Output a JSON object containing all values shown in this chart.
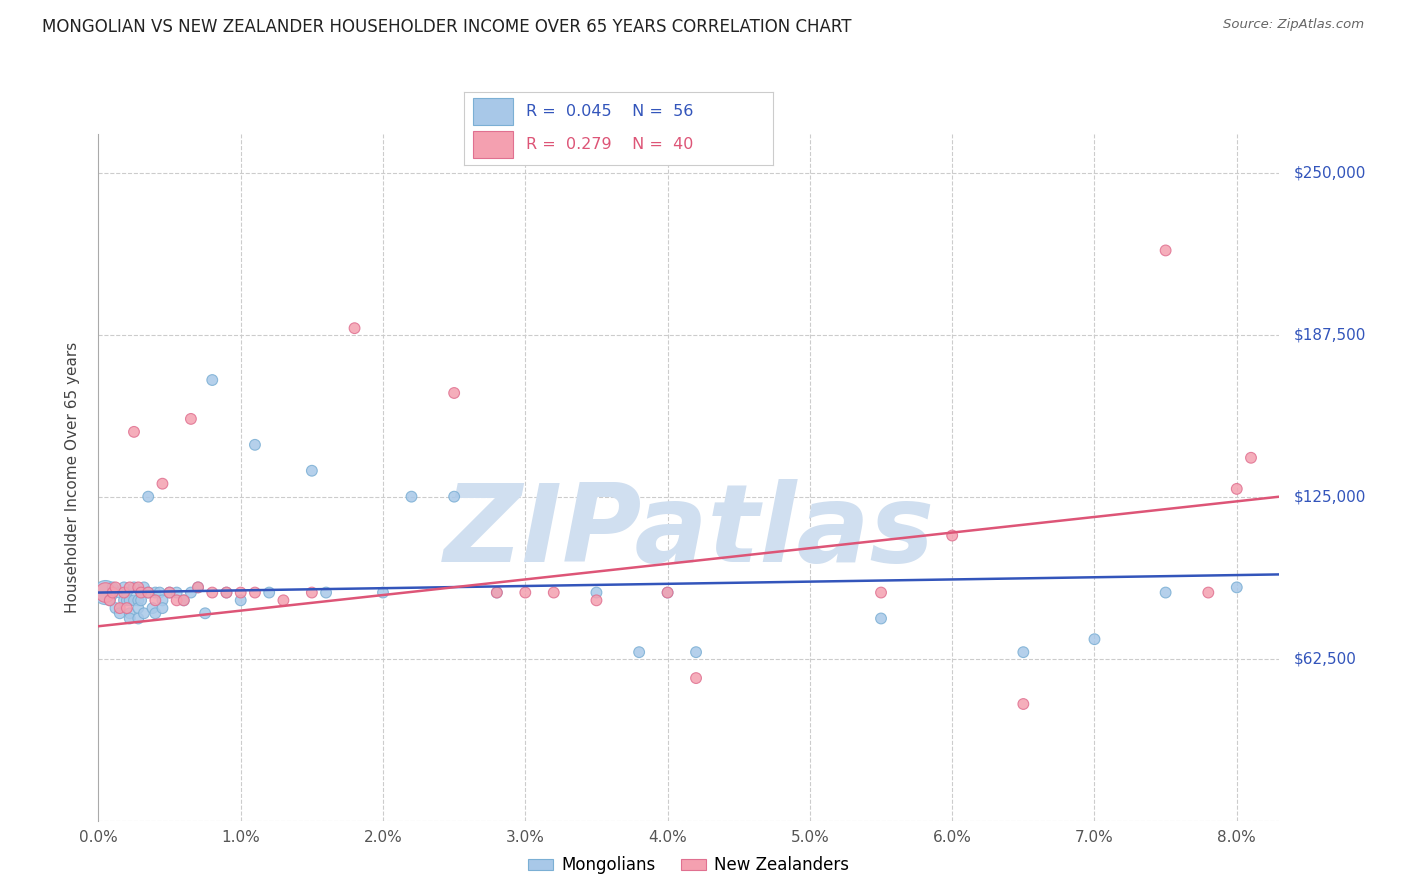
{
  "title": "MONGOLIAN VS NEW ZEALANDER HOUSEHOLDER INCOME OVER 65 YEARS CORRELATION CHART",
  "source": "Source: ZipAtlas.com",
  "xlabel_ticks": [
    "0.0%",
    "1.0%",
    "2.0%",
    "3.0%",
    "4.0%",
    "5.0%",
    "6.0%",
    "7.0%",
    "8.0%"
  ],
  "xlabel_vals": [
    0.0,
    1.0,
    2.0,
    3.0,
    4.0,
    5.0,
    6.0,
    7.0,
    8.0
  ],
  "ylabel_ticks": [
    0,
    62500,
    125000,
    187500,
    250000
  ],
  "ylabel_labels": [
    "",
    "$62,500",
    "$125,000",
    "$187,500",
    "$250,000"
  ],
  "xlim": [
    0.0,
    8.3
  ],
  "ylim": [
    0,
    265000
  ],
  "ylabel": "Householder Income Over 65 years",
  "legend_blue_r": "R = 0.045",
  "legend_blue_n": "N = 56",
  "legend_pink_r": "R = 0.279",
  "legend_pink_n": "N = 40",
  "legend1": "Mongolians",
  "legend2": "New Zealanders",
  "blue_color": "#a8c8e8",
  "pink_color": "#f4a0b0",
  "blue_edge": "#7bafd4",
  "pink_edge": "#e07090",
  "line_blue": "#3355bb",
  "line_pink": "#dd5577",
  "watermark": "ZIPatlas",
  "watermark_color": "#d0dff0",
  "background_color": "#ffffff",
  "grid_color": "#cccccc",
  "title_color": "#222222",
  "axis_label_color": "#444444",
  "right_label_color": "#3355bb",
  "tick_label_color": "#555555",
  "mongolian_x": [
    0.05,
    0.08,
    0.1,
    0.12,
    0.15,
    0.15,
    0.18,
    0.18,
    0.2,
    0.2,
    0.22,
    0.22,
    0.22,
    0.25,
    0.25,
    0.28,
    0.28,
    0.28,
    0.3,
    0.3,
    0.32,
    0.32,
    0.35,
    0.35,
    0.38,
    0.4,
    0.4,
    0.43,
    0.45,
    0.45,
    0.5,
    0.55,
    0.6,
    0.65,
    0.7,
    0.75,
    0.8,
    0.9,
    1.0,
    1.1,
    1.2,
    1.5,
    1.6,
    2.0,
    2.2,
    2.5,
    2.8,
    3.5,
    3.8,
    4.0,
    4.2,
    5.5,
    6.5,
    7.0,
    7.5,
    8.0
  ],
  "mongolian_y": [
    88000,
    85000,
    90000,
    82000,
    88000,
    80000,
    85000,
    90000,
    85000,
    88000,
    85000,
    80000,
    78000,
    90000,
    85000,
    85000,
    82000,
    78000,
    88000,
    85000,
    90000,
    80000,
    88000,
    125000,
    82000,
    88000,
    80000,
    88000,
    85000,
    82000,
    88000,
    88000,
    85000,
    88000,
    90000,
    80000,
    170000,
    88000,
    85000,
    145000,
    88000,
    135000,
    88000,
    88000,
    125000,
    125000,
    88000,
    88000,
    65000,
    88000,
    65000,
    78000,
    65000,
    70000,
    88000,
    90000
  ],
  "mongolian_size": [
    300,
    60,
    60,
    60,
    60,
    60,
    60,
    60,
    60,
    60,
    60,
    60,
    60,
    60,
    60,
    60,
    60,
    60,
    60,
    60,
    60,
    60,
    60,
    60,
    60,
    60,
    60,
    60,
    60,
    60,
    60,
    60,
    60,
    60,
    60,
    60,
    60,
    60,
    60,
    60,
    60,
    60,
    60,
    60,
    60,
    60,
    60,
    60,
    60,
    60,
    60,
    60,
    60,
    60,
    60,
    60
  ],
  "nz_x": [
    0.05,
    0.08,
    0.1,
    0.12,
    0.15,
    0.18,
    0.2,
    0.22,
    0.25,
    0.28,
    0.3,
    0.35,
    0.4,
    0.45,
    0.5,
    0.55,
    0.6,
    0.65,
    0.7,
    0.8,
    0.9,
    1.0,
    1.1,
    1.3,
    1.5,
    1.8,
    2.5,
    2.8,
    3.0,
    3.2,
    3.5,
    4.0,
    4.2,
    5.5,
    6.0,
    6.5,
    7.5,
    7.8,
    8.0,
    8.1
  ],
  "nz_y": [
    88000,
    85000,
    88000,
    90000,
    82000,
    88000,
    82000,
    90000,
    150000,
    90000,
    88000,
    88000,
    85000,
    130000,
    88000,
    85000,
    85000,
    155000,
    90000,
    88000,
    88000,
    88000,
    88000,
    85000,
    88000,
    190000,
    165000,
    88000,
    88000,
    88000,
    85000,
    88000,
    55000,
    88000,
    110000,
    45000,
    220000,
    88000,
    128000,
    140000
  ],
  "nz_size": [
    200,
    60,
    60,
    60,
    60,
    60,
    60,
    60,
    60,
    60,
    60,
    60,
    60,
    60,
    60,
    60,
    60,
    60,
    60,
    60,
    60,
    60,
    60,
    60,
    60,
    60,
    60,
    60,
    60,
    60,
    60,
    60,
    60,
    60,
    60,
    60,
    60,
    60,
    60,
    60
  ],
  "blue_line_y0": 88000,
  "blue_line_y1": 95000,
  "pink_line_y0": 75000,
  "pink_line_y1": 125000
}
